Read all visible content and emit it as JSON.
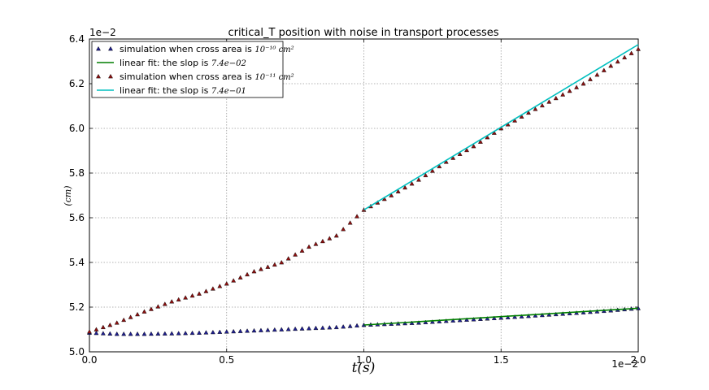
{
  "chart_data": {
    "type": "scatter",
    "title": "critical_T position with  noise in transport processes",
    "xlabel": "t(s)",
    "ylabel": "(cm)",
    "x_offset_label": "1e−2",
    "y_offset_label": "1e−2",
    "xlim": [
      0.0,
      2.0
    ],
    "ylim": [
      5.0,
      6.4
    ],
    "xticks": [
      "0.0",
      "0.5",
      "1.0",
      "1.5",
      "2.0"
    ],
    "yticks": [
      "5.0",
      "5.2",
      "5.4",
      "5.6",
      "5.8",
      "6.0",
      "6.2",
      "6.4"
    ],
    "grid": true,
    "legend_position": "top-left",
    "series": [
      {
        "name": "simulation when cross area is 10^{-10} cm^2",
        "legend_text": "simulation when cross area is",
        "legend_math": "10⁻¹⁰ cm²",
        "kind": "scatter",
        "marker": "triangle",
        "color": "#1f1f8f",
        "x": [
          0.0,
          0.1,
          0.2,
          0.3,
          0.4,
          0.5,
          0.6,
          0.7,
          0.8,
          0.9,
          1.0,
          1.1,
          1.2,
          1.3,
          1.4,
          1.5,
          1.6,
          1.7,
          1.8,
          1.9,
          2.0
        ],
        "y": [
          5.085,
          5.08,
          5.08,
          5.082,
          5.085,
          5.09,
          5.095,
          5.1,
          5.105,
          5.11,
          5.12,
          5.125,
          5.13,
          5.138,
          5.145,
          5.152,
          5.16,
          5.168,
          5.176,
          5.185,
          5.195
        ]
      },
      {
        "name": "linear fit: the slop is 7.4e-02",
        "legend_text": "linear fit: the slop is",
        "legend_math": "7.4e−02",
        "kind": "line",
        "color": "#007f00",
        "x": [
          1.0,
          2.0
        ],
        "y": [
          5.12,
          5.195
        ]
      },
      {
        "name": "simulation when cross area is 10^{-11} cm^2",
        "legend_text": "simulation when cross area is",
        "legend_math": "10⁻¹¹ cm²",
        "kind": "scatter",
        "marker": "triangle",
        "color": "#8b1010",
        "x": [
          0.0,
          0.1,
          0.2,
          0.3,
          0.4,
          0.5,
          0.6,
          0.7,
          0.8,
          0.9,
          1.0,
          1.1,
          1.2,
          1.3,
          1.4,
          1.5,
          1.6,
          1.7,
          1.8,
          1.9,
          2.0
        ],
        "y": [
          5.09,
          5.13,
          5.18,
          5.225,
          5.26,
          5.305,
          5.36,
          5.4,
          5.47,
          5.52,
          5.635,
          5.7,
          5.77,
          5.85,
          5.92,
          6.0,
          6.07,
          6.135,
          6.2,
          6.28,
          6.355
        ]
      },
      {
        "name": "linear fit: the slop is 7.4e-01",
        "legend_text": "linear fit: the slop is",
        "legend_math": "7.4e−01",
        "kind": "line",
        "color": "#00bfbf",
        "x": [
          1.0,
          2.0
        ],
        "y": [
          5.635,
          6.375
        ]
      }
    ]
  }
}
